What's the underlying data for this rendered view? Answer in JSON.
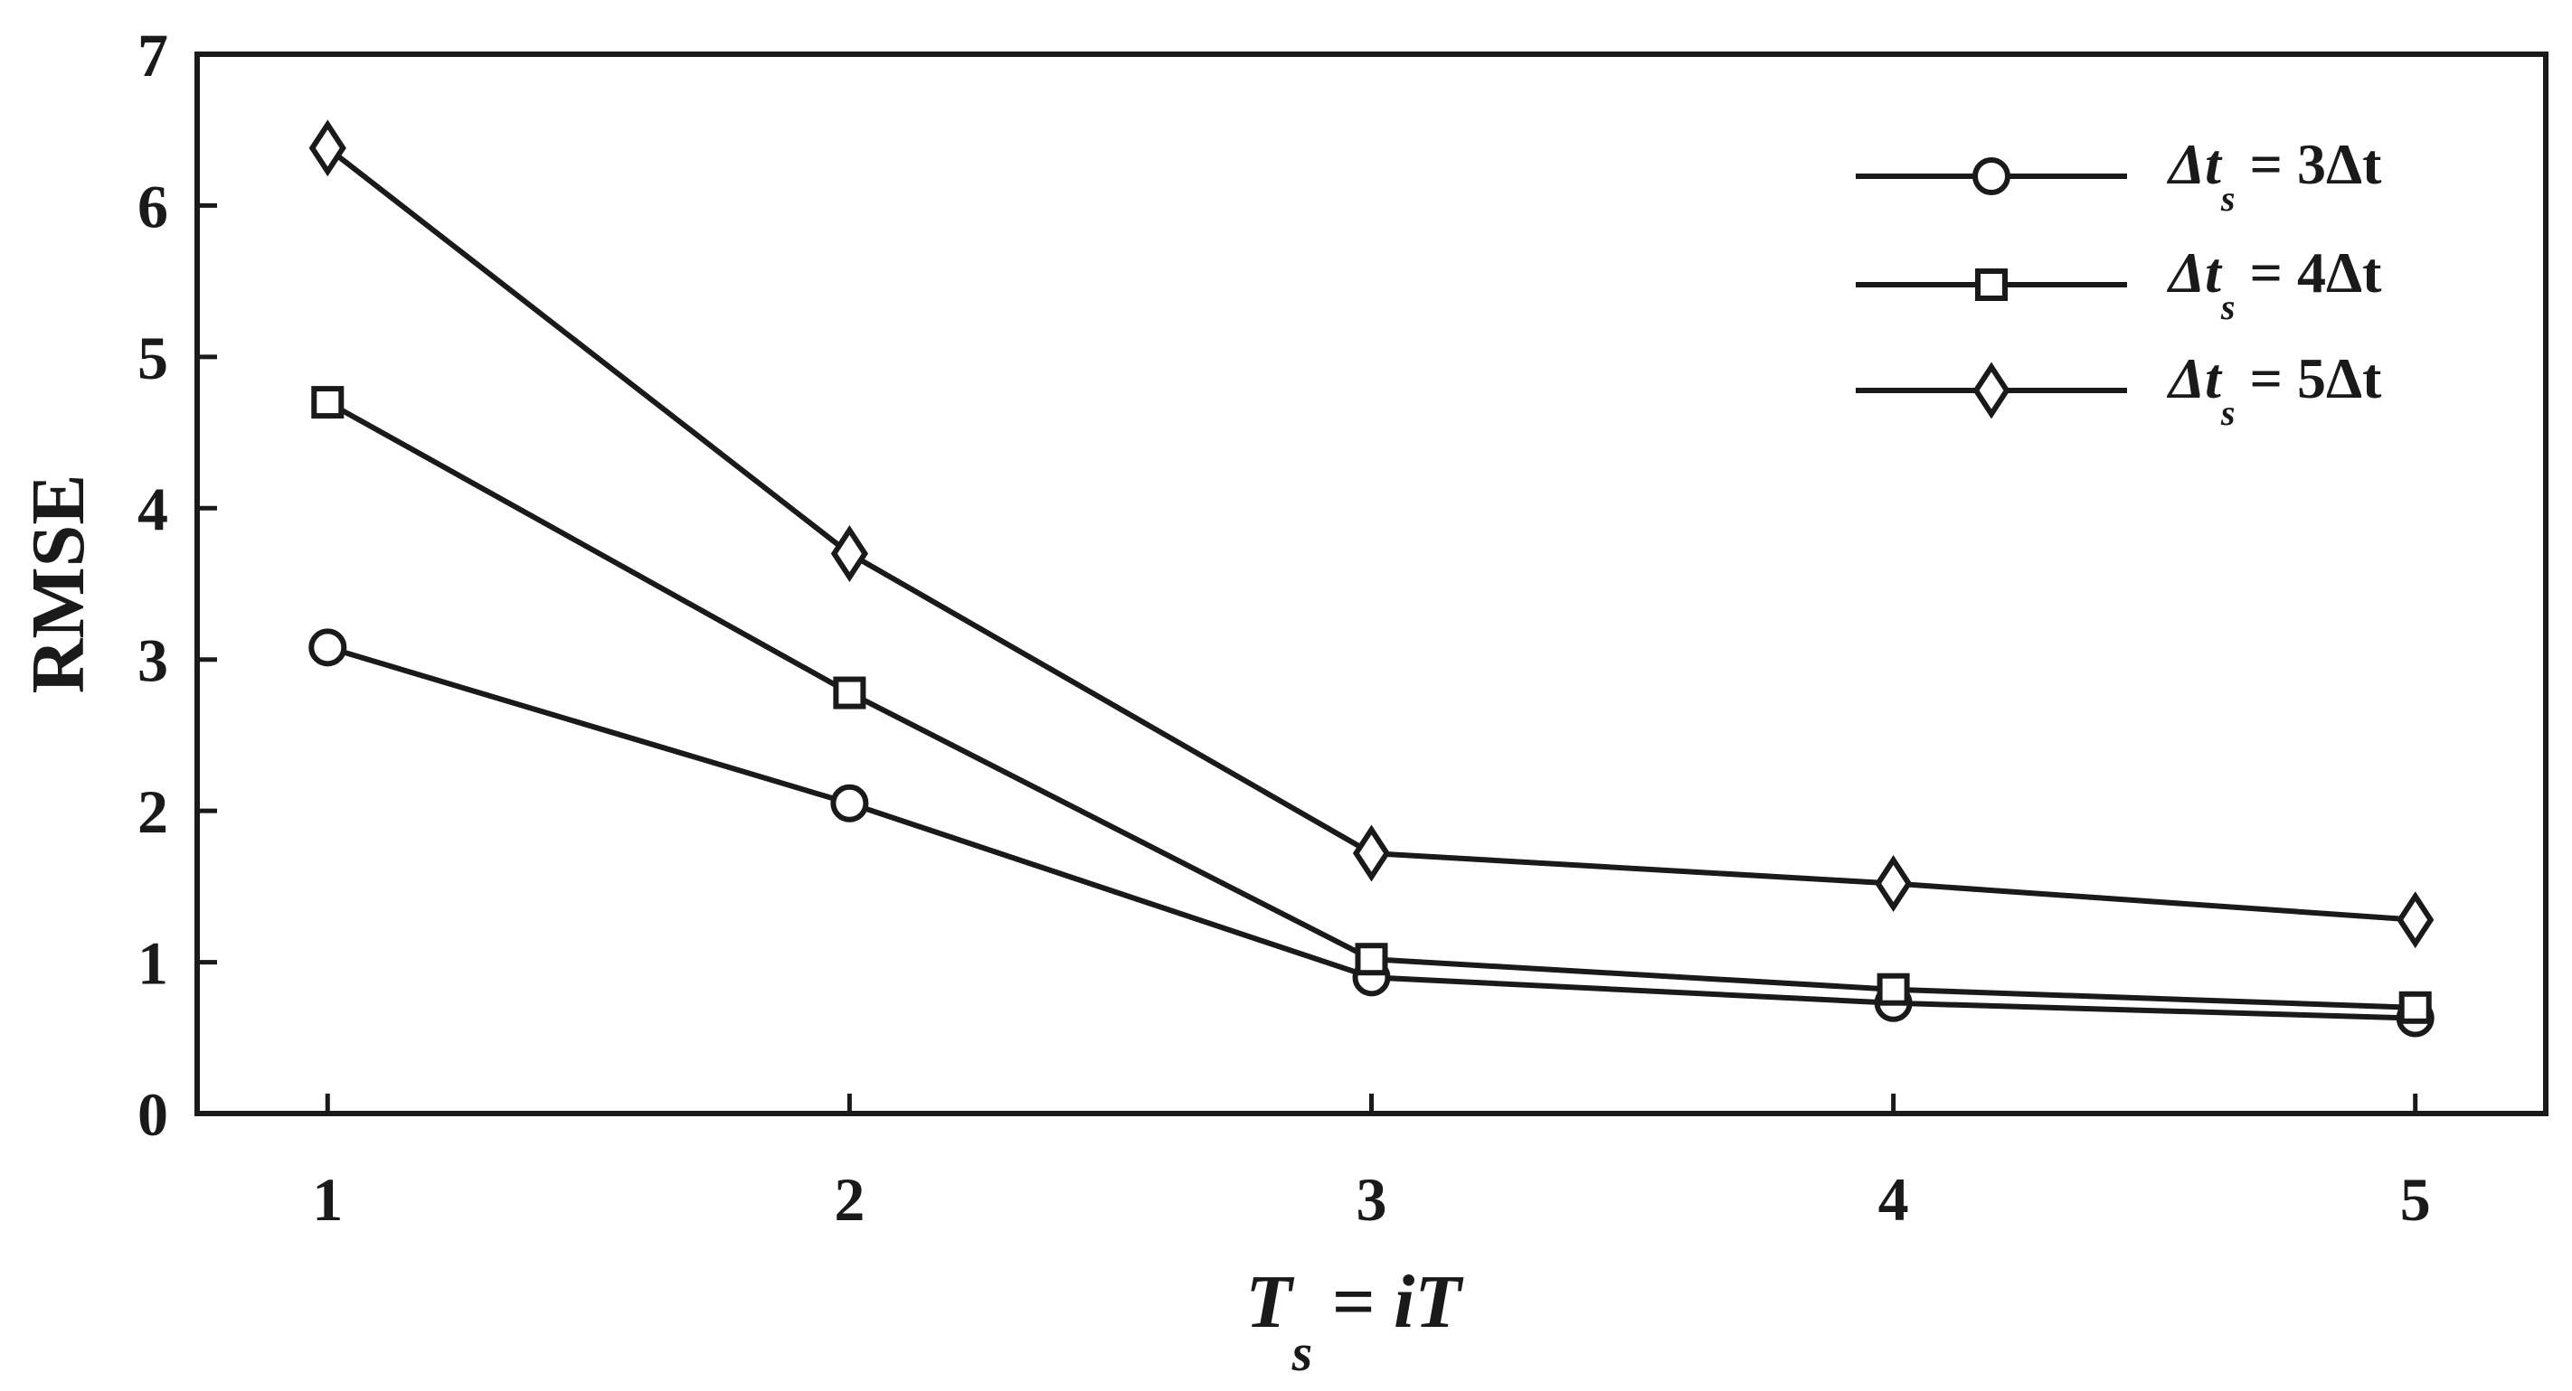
{
  "chart_data": {
    "type": "line",
    "x": [
      1,
      2,
      3,
      4,
      5
    ],
    "xticks": [
      1,
      2,
      3,
      4,
      5
    ],
    "yticks": [
      0,
      1,
      2,
      3,
      4,
      5,
      6,
      7
    ],
    "xlim": [
      0.75,
      5.25
    ],
    "ylim": [
      0,
      7
    ],
    "ylabel": "RMSE",
    "xlabel": {
      "main": "T",
      "sub": "s",
      "rest": " = iT"
    },
    "grid": false,
    "legend_position": "top-right",
    "series": [
      {
        "name": "Δt_s = 3Δt",
        "label_parts": {
          "pre": "Δt",
          "sub": "s",
          "post": " = 3Δt"
        },
        "marker": "circle",
        "values": [
          3.08,
          2.05,
          0.9,
          0.73,
          0.63
        ]
      },
      {
        "name": "Δt_s = 4Δt",
        "label_parts": {
          "pre": "Δt",
          "sub": "s",
          "post": " = 4Δt"
        },
        "marker": "square",
        "values": [
          4.7,
          2.78,
          1.02,
          0.82,
          0.7
        ]
      },
      {
        "name": "Δt_s = 5Δt",
        "label_parts": {
          "pre": "Δt",
          "sub": "s",
          "post": " = 5Δt"
        },
        "marker": "diamond",
        "values": [
          6.38,
          3.7,
          1.72,
          1.52,
          1.28
        ]
      }
    ],
    "colors": {
      "line": "#1a1a1a",
      "background": "#ffffff"
    }
  }
}
